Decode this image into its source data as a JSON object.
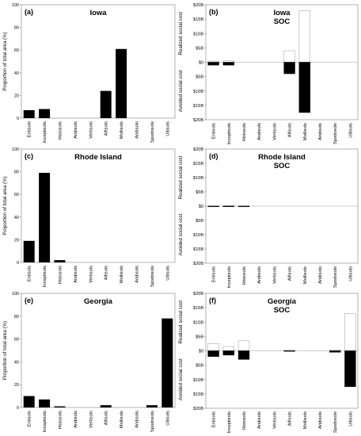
{
  "categories": [
    "Entisols",
    "Inceptisols",
    "Histosols",
    "Andisols",
    "Vertisols",
    "Alfisols",
    "Mollisols",
    "Aridisols",
    "Spodosols",
    "Ultisols"
  ],
  "chart_data": [
    {
      "id": "a",
      "type": "bar",
      "panel_label": "(a)",
      "title": "Iowa",
      "subtitle": "",
      "ylabel": "Proportion of total area (%)",
      "ylim": [
        0,
        100
      ],
      "yticks": [
        "0",
        "20",
        "40",
        "60",
        "80",
        "100"
      ],
      "values": [
        7,
        8,
        0,
        0,
        0,
        24,
        61,
        0,
        0,
        0
      ]
    },
    {
      "id": "b",
      "type": "bar",
      "panel_label": "(b)",
      "title": "Iowa",
      "subtitle": "SOC",
      "ylabel_top": "Realized social cost",
      "ylabel_bottom": "Avoided social cost",
      "ylim": [
        -20,
        20
      ],
      "yticks": [
        "$20B",
        "$15B",
        "$10B",
        "$5B",
        "$0",
        "$5B",
        "$10B",
        "$15B",
        "$20B"
      ],
      "series": [
        {
          "name": "",
          "fill": "#ffffff",
          "values": [
            0.4,
            0.5,
            0,
            0,
            0,
            4,
            18,
            0,
            0,
            0
          ]
        },
        {
          "name": "",
          "fill": "#000000",
          "values": [
            -1,
            -1,
            0,
            0,
            0,
            -4,
            -17.5,
            0,
            0,
            0
          ]
        }
      ]
    },
    {
      "id": "c",
      "type": "bar",
      "panel_label": "(c)",
      "title": "Rhode Island",
      "subtitle": "",
      "ylabel": "Proportion of total area (%)",
      "ylim": [
        0,
        100
      ],
      "yticks": [
        "0",
        "20",
        "40",
        "60",
        "80",
        "100"
      ],
      "values": [
        19,
        79,
        2,
        0,
        0,
        0,
        0,
        0,
        0,
        0
      ]
    },
    {
      "id": "d",
      "type": "bar",
      "panel_label": "(d)",
      "title": "Rhode Island",
      "subtitle": "SOC",
      "ylabel_top": "Realized social cost",
      "ylabel_bottom": "Avoided social cost",
      "ylim": [
        -20,
        20
      ],
      "yticks": [
        "$20B",
        "$15B",
        "$10B",
        "$5B",
        "$0",
        "$5B",
        "$10B",
        "$15B",
        "$20B"
      ],
      "series": [
        {
          "name": "",
          "fill": "#ffffff",
          "values": [
            0.1,
            0.2,
            0.1,
            0,
            0,
            0,
            0,
            0,
            0,
            0
          ]
        },
        {
          "name": "",
          "fill": "#000000",
          "values": [
            -0.1,
            -0.2,
            -0.2,
            0,
            0,
            0,
            0,
            0,
            0,
            0
          ]
        }
      ]
    },
    {
      "id": "e",
      "type": "bar",
      "panel_label": "(e)",
      "title": "Georgia",
      "subtitle": "",
      "ylabel": "Proportion of total area (%)",
      "ylim": [
        0,
        100
      ],
      "yticks": [
        "0",
        "20",
        "40",
        "60",
        "80",
        "100"
      ],
      "values": [
        10,
        7,
        1,
        0,
        0,
        2,
        0,
        0,
        2,
        78
      ]
    },
    {
      "id": "f",
      "type": "bar",
      "panel_label": "(f)",
      "title": "Georgia",
      "subtitle": "SOC",
      "ylabel_top": "Realized social cost",
      "ylabel_bottom": "Avoided social cost",
      "ylim": [
        -20,
        20
      ],
      "yticks": [
        "$20B",
        "$15B",
        "$10B",
        "$5B",
        "$0",
        "$5B",
        "$10B",
        "$15B",
        "$20B"
      ],
      "series": [
        {
          "name": "",
          "fill": "#ffffff",
          "values": [
            2.5,
            1.5,
            3.5,
            0,
            0,
            0.3,
            0,
            0,
            0.3,
            13
          ]
        },
        {
          "name": "",
          "fill": "#000000",
          "values": [
            -2,
            -1.5,
            -3,
            0,
            0,
            -0.2,
            0,
            0,
            -0.5,
            -12.5
          ]
        }
      ]
    }
  ]
}
